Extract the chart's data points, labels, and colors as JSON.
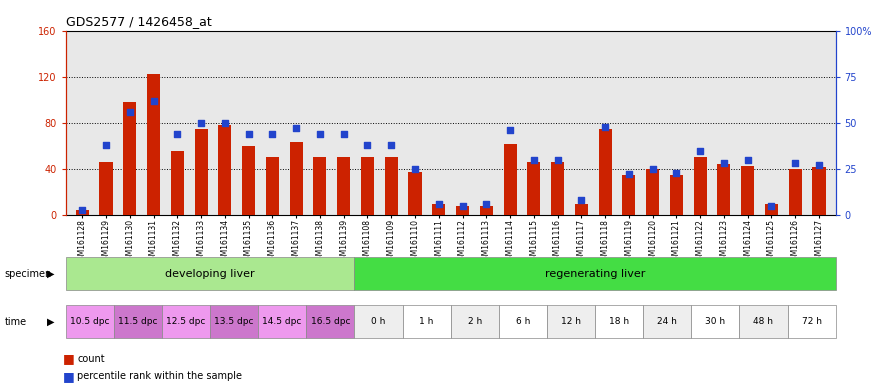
{
  "title": "GDS2577 / 1426458_at",
  "samples": [
    "GSM161128",
    "GSM161129",
    "GSM161130",
    "GSM161131",
    "GSM161132",
    "GSM161133",
    "GSM161134",
    "GSM161135",
    "GSM161136",
    "GSM161137",
    "GSM161138",
    "GSM161139",
    "GSM161108",
    "GSM161109",
    "GSM161110",
    "GSM161111",
    "GSM161112",
    "GSM161113",
    "GSM161114",
    "GSM161115",
    "GSM161116",
    "GSM161117",
    "GSM161118",
    "GSM161119",
    "GSM161120",
    "GSM161121",
    "GSM161122",
    "GSM161123",
    "GSM161124",
    "GSM161125",
    "GSM161126",
    "GSM161127"
  ],
  "counts": [
    4,
    46,
    98,
    122,
    56,
    75,
    78,
    60,
    50,
    63,
    50,
    50,
    50,
    50,
    37,
    10,
    8,
    8,
    62,
    46,
    46,
    10,
    75,
    35,
    40,
    35,
    50,
    44,
    43,
    10,
    40,
    42
  ],
  "percentiles": [
    3,
    38,
    56,
    62,
    44,
    50,
    50,
    44,
    44,
    47,
    44,
    44,
    38,
    38,
    25,
    6,
    5,
    6,
    46,
    30,
    30,
    8,
    48,
    22,
    25,
    23,
    35,
    28,
    30,
    5,
    28,
    27
  ],
  "specimen_groups": [
    {
      "label": "developing liver",
      "start": 0,
      "end": 12,
      "color": "#aae890"
    },
    {
      "label": "regenerating liver",
      "start": 12,
      "end": 32,
      "color": "#44dd44"
    }
  ],
  "time_groups": [
    {
      "label": "10.5 dpc",
      "start": 0,
      "end": 2,
      "color": "#ee99ee"
    },
    {
      "label": "11.5 dpc",
      "start": 2,
      "end": 4,
      "color": "#cc77cc"
    },
    {
      "label": "12.5 dpc",
      "start": 4,
      "end": 6,
      "color": "#ee99ee"
    },
    {
      "label": "13.5 dpc",
      "start": 6,
      "end": 8,
      "color": "#cc77cc"
    },
    {
      "label": "14.5 dpc",
      "start": 8,
      "end": 10,
      "color": "#ee99ee"
    },
    {
      "label": "16.5 dpc",
      "start": 10,
      "end": 12,
      "color": "#cc77cc"
    },
    {
      "label": "0 h",
      "start": 12,
      "end": 14,
      "color": "#eeeeee"
    },
    {
      "label": "1 h",
      "start": 14,
      "end": 16,
      "color": "#ffffff"
    },
    {
      "label": "2 h",
      "start": 16,
      "end": 18,
      "color": "#eeeeee"
    },
    {
      "label": "6 h",
      "start": 18,
      "end": 20,
      "color": "#ffffff"
    },
    {
      "label": "12 h",
      "start": 20,
      "end": 22,
      "color": "#eeeeee"
    },
    {
      "label": "18 h",
      "start": 22,
      "end": 24,
      "color": "#ffffff"
    },
    {
      "label": "24 h",
      "start": 24,
      "end": 26,
      "color": "#eeeeee"
    },
    {
      "label": "30 h",
      "start": 26,
      "end": 28,
      "color": "#ffffff"
    },
    {
      "label": "48 h",
      "start": 28,
      "end": 30,
      "color": "#eeeeee"
    },
    {
      "label": "72 h",
      "start": 30,
      "end": 32,
      "color": "#ffffff"
    }
  ],
  "bar_color": "#cc2200",
  "dot_color": "#2244cc",
  "ylim_left": [
    0,
    160
  ],
  "ylim_right": [
    0,
    100
  ],
  "yticks_left": [
    0,
    40,
    80,
    120,
    160
  ],
  "yticks_right": [
    0,
    25,
    50,
    75,
    100
  ],
  "ytick_labels_right": [
    "0",
    "25",
    "50",
    "75",
    "100%"
  ],
  "bar_width": 0.55,
  "chart_bg": "#e8e8e8",
  "fig_bg": "#ffffff"
}
